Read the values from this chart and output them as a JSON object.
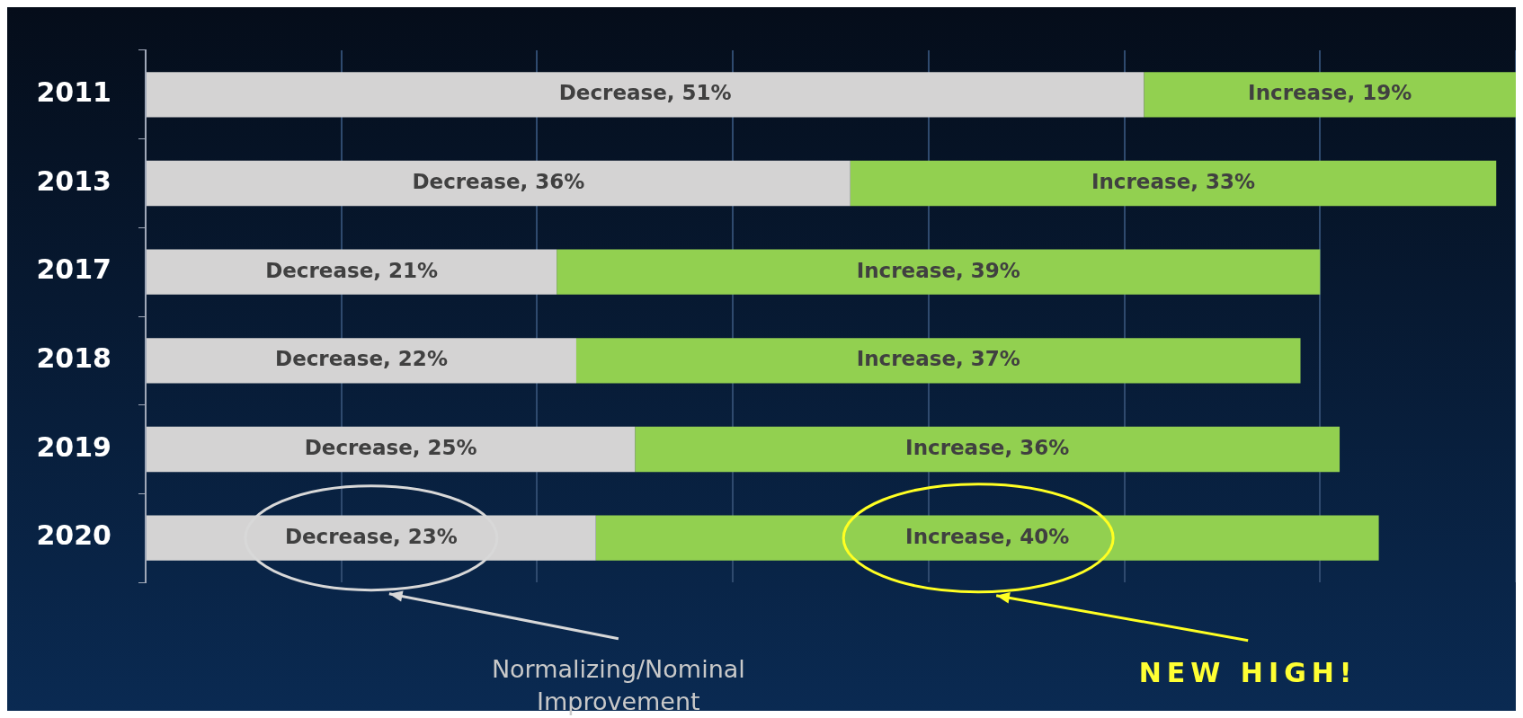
{
  "chart_data": {
    "type": "bar",
    "orientation": "horizontal",
    "stacked": true,
    "categories": [
      "2011",
      "2013",
      "2017",
      "2018",
      "2019",
      "2020"
    ],
    "series": [
      {
        "color": "#d4d3d3",
        "values": [
          51,
          36,
          21,
          22,
          25,
          23
        ],
        "value_labels": [
          "Decrease, 51%",
          "Decrease, 36%",
          "Decrease, 21%",
          "Decrease, 22%",
          "Decrease, 25%",
          "Decrease, 23%"
        ]
      },
      {
        "color": "#92d050",
        "values": [
          19,
          33,
          39,
          37,
          36,
          40
        ],
        "value_labels": [
          "Increase, 19%",
          "Increase, 33%",
          "Increase, 39%",
          "Increase, 37%",
          "Increase, 36%",
          "Increase, 40%"
        ]
      }
    ],
    "xlim": [
      0,
      70
    ],
    "xticks": [
      {
        "value": 0,
        "label": null
      },
      {
        "value": 10,
        "label": null
      },
      {
        "value": 20,
        "label": null
      },
      {
        "value": 30,
        "label": null
      },
      {
        "value": 40,
        "label": null
      },
      {
        "value": 50,
        "label": null
      },
      {
        "value": 60,
        "label": null
      },
      {
        "value": 70,
        "label": null
      }
    ],
    "tick_labels": "y",
    "grid": "x",
    "legend": false,
    "annotations": [
      "Normalizing/Nominal Improvement",
      "NEW HIGH!"
    ]
  }
}
